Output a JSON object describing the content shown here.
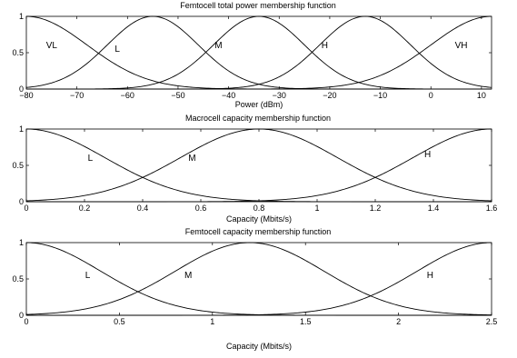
{
  "chart_data": [
    {
      "type": "line",
      "title": "Femtocell total power membership function",
      "xlabel": "Power (dBm)",
      "ylabel": "",
      "xlim": [
        -80,
        12
      ],
      "ylim": [
        0,
        1
      ],
      "xticks": [
        -80,
        -70,
        -60,
        -50,
        -40,
        -30,
        -20,
        -10,
        0,
        10
      ],
      "xtick_labels": [
        "−80",
        "−70",
        "−60",
        "−50",
        "−40",
        "−30",
        "−20",
        "−10",
        "0",
        "10"
      ],
      "yticks": [
        0,
        0.5,
        1
      ],
      "ytick_labels": [
        "0",
        "0.5",
        "1"
      ],
      "grid": false,
      "legend": "none",
      "series": [
        {
          "name": "VL",
          "function": "gaussian",
          "center": -80,
          "sigma": 12,
          "label_at": [
            -75,
            0.6
          ]
        },
        {
          "name": "L",
          "function": "gaussian",
          "center": -55,
          "sigma": 9,
          "label_at": [
            -62,
            0.55
          ]
        },
        {
          "name": "M",
          "function": "gaussian",
          "center": -34,
          "sigma": 9,
          "label_at": [
            -42,
            0.6
          ]
        },
        {
          "name": "H",
          "function": "gaussian",
          "center": -13,
          "sigma": 9,
          "label_at": [
            -21,
            0.6
          ]
        },
        {
          "name": "VH",
          "function": "gaussian",
          "center": 12,
          "sigma": 12,
          "label_at": [
            6,
            0.6
          ]
        }
      ]
    },
    {
      "type": "line",
      "title": "Macrocell capacity membership function",
      "xlabel": "Capacity (Mbits/s)",
      "ylabel": "",
      "xlim": [
        0,
        1.6
      ],
      "ylim": [
        0,
        1
      ],
      "xticks": [
        0,
        0.2,
        0.4,
        0.6,
        0.8,
        1,
        1.2,
        1.4,
        1.6
      ],
      "xtick_labels": [
        "0",
        "0.2",
        "0.4",
        "0.6",
        "0.8",
        "1",
        "1.2",
        "1.4",
        "1.6"
      ],
      "yticks": [
        0,
        0.5,
        1
      ],
      "ytick_labels": [
        "0",
        "0.5",
        "1"
      ],
      "grid": false,
      "legend": "none",
      "series": [
        {
          "name": "L",
          "function": "gaussian",
          "center": 0,
          "sigma": 0.27,
          "label_at": [
            0.22,
            0.6
          ]
        },
        {
          "name": "M",
          "function": "gaussian",
          "center": 0.8,
          "sigma": 0.27,
          "label_at": [
            0.57,
            0.6
          ]
        },
        {
          "name": "H",
          "function": "gaussian",
          "center": 1.6,
          "sigma": 0.27,
          "label_at": [
            1.38,
            0.65
          ]
        }
      ]
    },
    {
      "type": "line",
      "title": "Femtocell capacity membership function",
      "xlabel": "Capacity (Mbits/s)",
      "ylabel": "",
      "xlim": [
        0,
        2.5
      ],
      "ylim": [
        0,
        1
      ],
      "xticks": [
        0,
        0.5,
        1,
        1.5,
        2,
        2.5
      ],
      "xtick_labels": [
        "0",
        "0.5",
        "1",
        "1.5",
        "2",
        "2.5"
      ],
      "yticks": [
        0,
        0.5,
        1
      ],
      "ytick_labels": [
        "0",
        "0.5",
        "1"
      ],
      "grid": false,
      "legend": "none",
      "series": [
        {
          "name": "L",
          "function": "gaussian",
          "center": 0,
          "sigma": 0.4,
          "label_at": [
            0.33,
            0.55
          ]
        },
        {
          "name": "M",
          "function": "gaussian",
          "center": 1.2,
          "sigma": 0.4,
          "label_at": [
            0.87,
            0.55
          ]
        },
        {
          "name": "H",
          "function": "gaussian",
          "center": 2.5,
          "sigma": 0.4,
          "label_at": [
            2.17,
            0.55
          ]
        }
      ]
    }
  ]
}
